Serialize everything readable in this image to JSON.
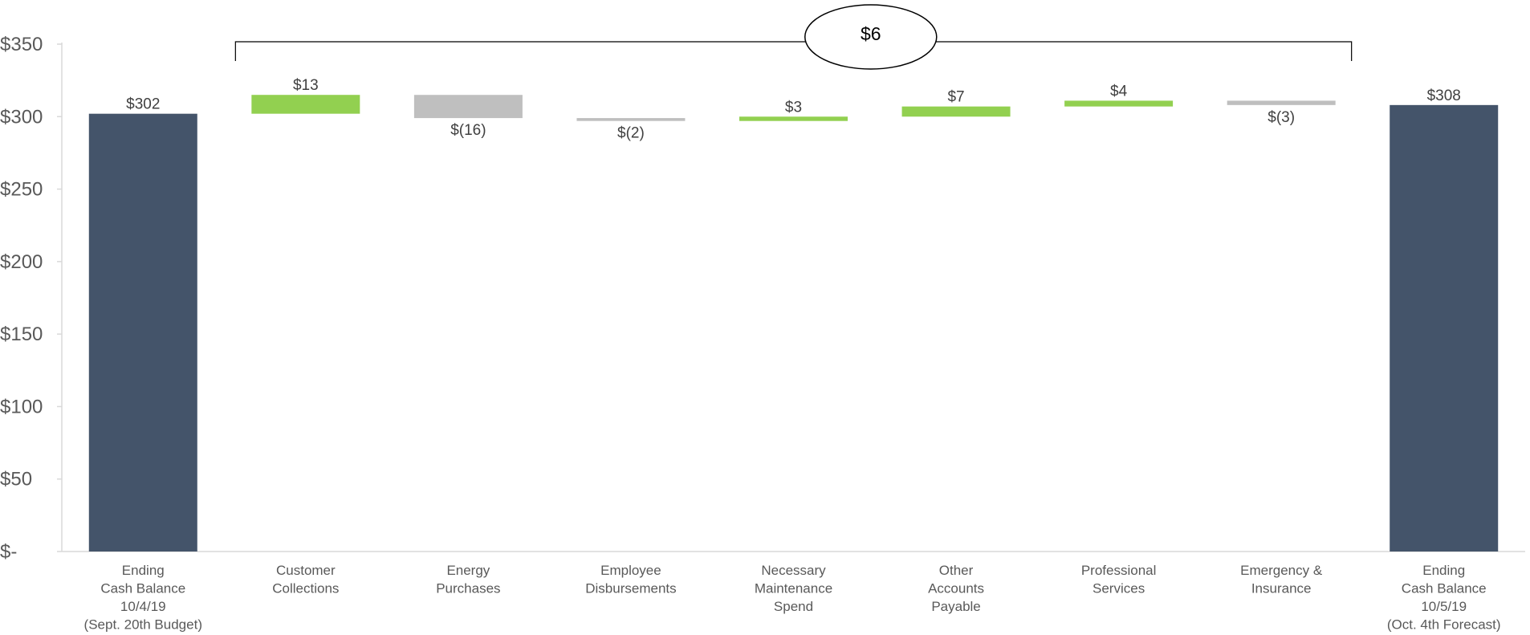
{
  "chart_data": {
    "type": "bar",
    "subtype": "waterfall",
    "categories": [
      [
        "Ending",
        "Cash Balance",
        "10/4/19",
        "(Sept. 20th Budget)"
      ],
      [
        "Customer",
        "Collections"
      ],
      [
        "Energy",
        "Purchases"
      ],
      [
        "Employee",
        "Disbursements"
      ],
      [
        "Necessary",
        "Maintenance",
        "Spend"
      ],
      [
        "Other",
        "Accounts",
        "Payable"
      ],
      [
        "Professional",
        "Services"
      ],
      [
        "Emergency &",
        "Insurance"
      ],
      [
        "Ending",
        "Cash Balance",
        "10/5/19",
        "(Oct. 4th Forecast)"
      ]
    ],
    "values": [
      302,
      13,
      -16,
      -2,
      3,
      7,
      4,
      -3,
      308
    ],
    "kinds": [
      "total",
      "delta",
      "delta",
      "delta",
      "delta",
      "delta",
      "delta",
      "delta",
      "total"
    ],
    "data_labels": [
      "$302",
      "$13",
      "$(16)",
      "$(2)",
      "$3",
      "$7",
      "$4",
      "$(3)",
      "$308"
    ],
    "y_ticks": [
      "$-",
      "$50",
      "$100",
      "$150",
      "$200",
      "$250",
      "$300",
      "$350"
    ],
    "ylim": [
      0,
      350
    ],
    "grid": false,
    "title": "",
    "xlabel": "",
    "ylabel": "",
    "colors": {
      "total": "#44546a",
      "increase": "#92d050",
      "decrease": "#bfbfbf",
      "axis": "#d9d9d9",
      "tick_text": "#595959",
      "label_text": "#404040"
    },
    "callout": {
      "label": "$6",
      "from_index": 1,
      "to_index": 7
    }
  }
}
